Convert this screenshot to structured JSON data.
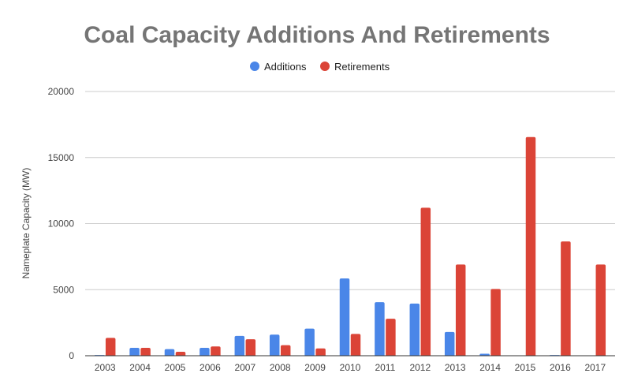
{
  "chart_data": {
    "type": "bar",
    "title": "Coal Capacity Additions And Retirements",
    "ylabel": "Nameplate Capacity (MW)",
    "xlabel": "",
    "ylim": [
      0,
      20000
    ],
    "yticks": [
      0,
      5000,
      10000,
      15000,
      20000
    ],
    "grid": true,
    "legend_position": "top",
    "categories": [
      "2003",
      "2004",
      "2005",
      "2006",
      "2007",
      "2008",
      "2009",
      "2010",
      "2011",
      "2012",
      "2013",
      "2014",
      "2015",
      "2016",
      "2017"
    ],
    "series": [
      {
        "name": "Additions",
        "color": "#4a86e8",
        "values": [
          50,
          600,
          500,
          600,
          1500,
          1600,
          2050,
          5850,
          4050,
          3950,
          1800,
          150,
          0,
          50,
          0
        ]
      },
      {
        "name": "Retirements",
        "color": "#db4437",
        "values": [
          1350,
          600,
          300,
          700,
          1250,
          800,
          550,
          1650,
          2800,
          11200,
          6900,
          5050,
          16550,
          8650,
          6900
        ]
      }
    ]
  }
}
